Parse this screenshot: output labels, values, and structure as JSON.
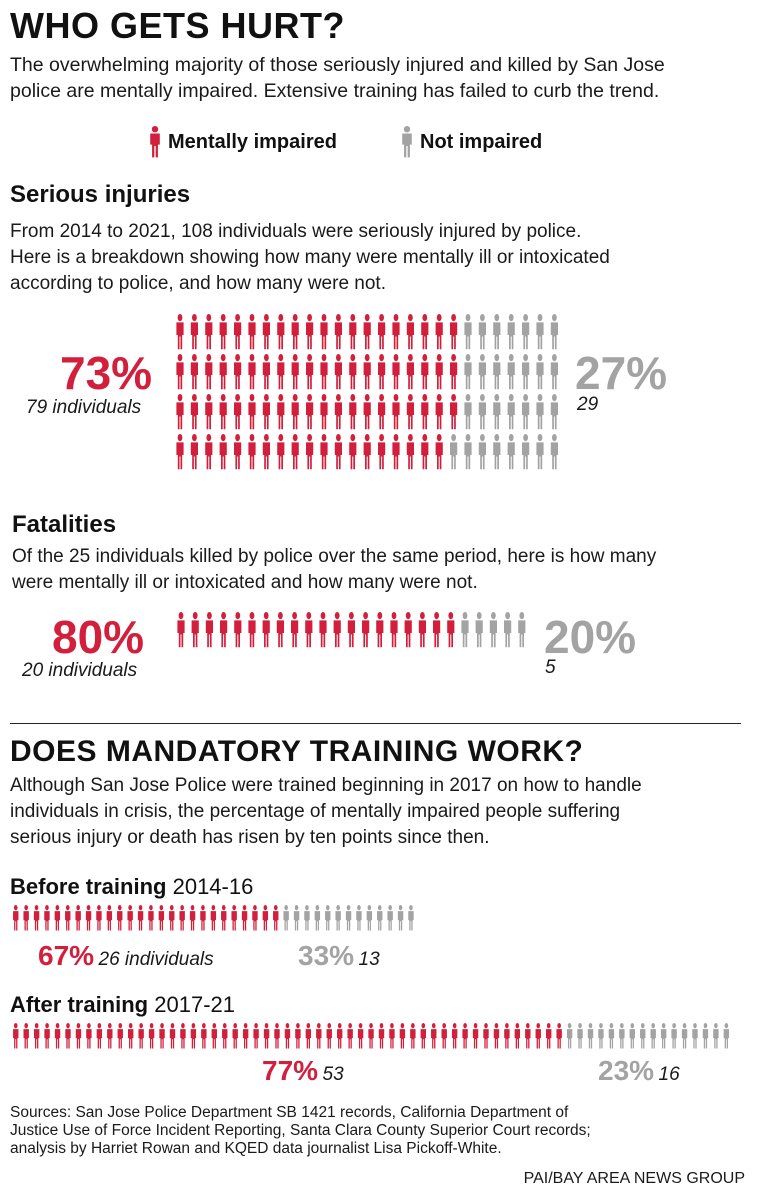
{
  "title": "WHO GETS HURT?",
  "intro": [
    "The overwhelming majority of those seriously injured and killed by San Jose",
    "police are mentally impaired. Extensive training has failed to curb the trend."
  ],
  "legend": {
    "impaired_label": "Mentally impaired",
    "not_impaired_label": "Not impaired",
    "impaired_color": "#d21f3c",
    "not_impaired_color": "#a3a3a3"
  },
  "injuries": {
    "heading": "Serious injuries",
    "text": [
      "From 2014 to 2021, 108 individuals were seriously injured by police.",
      "Here is a breakdown showing how many were mentally ill or intoxicated",
      "according to police, and how many were not."
    ],
    "impaired_pct": "73%",
    "impaired_count": "79 individuals",
    "not_pct": "27%",
    "not_count": "29"
  },
  "fatalities": {
    "heading": "Fatalities",
    "text": [
      "Of the 25 individuals killed by police over the same period, here is how many",
      "were mentally ill or intoxicated and how many were not."
    ],
    "impaired_pct": "80%",
    "impaired_count": "20 individuals",
    "not_pct": "20%",
    "not_count": "5"
  },
  "training": {
    "heading": "DOES MANDATORY TRAINING WORK?",
    "text": [
      "Although San Jose Police were trained beginning in 2017 on how to handle",
      "individuals in crisis, the percentage of mentally impaired people suffering",
      "serious injury or death has risen by ten points since then."
    ],
    "before": {
      "label": "Before training",
      "years": "2014-16",
      "impaired_pct": "67%",
      "impaired_count": "26 individuals",
      "not_pct": "33%",
      "not_count": "13"
    },
    "after": {
      "label": "After training",
      "years": "2017-21",
      "impaired_pct": "77%",
      "impaired_count": "53",
      "not_pct": "23%",
      "not_count": "16"
    }
  },
  "sources": [
    "Sources: San Jose Police Department SB 1421 records, California Department of",
    "Justice Use of Force Incident Reporting, Santa Clara County Superior Court records;",
    "analysis by Harriet Rowan and KQED data journalist Lisa Pickoff-White."
  ],
  "credit": "PAI/BAY AREA NEWS GROUP",
  "chart_data": [
    {
      "type": "table",
      "title": "Serious injuries",
      "categories": [
        "Mentally impaired",
        "Not impaired"
      ],
      "values": [
        79,
        29
      ],
      "percent": [
        73,
        27
      ]
    },
    {
      "type": "table",
      "title": "Fatalities",
      "categories": [
        "Mentally impaired",
        "Not impaired"
      ],
      "values": [
        20,
        5
      ],
      "percent": [
        80,
        20
      ]
    },
    {
      "type": "table",
      "title": "Before training 2014-16",
      "categories": [
        "Mentally impaired",
        "Not impaired"
      ],
      "values": [
        26,
        13
      ],
      "percent": [
        67,
        33
      ]
    },
    {
      "type": "table",
      "title": "After training 2017-21",
      "categories": [
        "Mentally impaired",
        "Not impaired"
      ],
      "values": [
        53,
        16
      ],
      "percent": [
        77,
        23
      ]
    }
  ]
}
